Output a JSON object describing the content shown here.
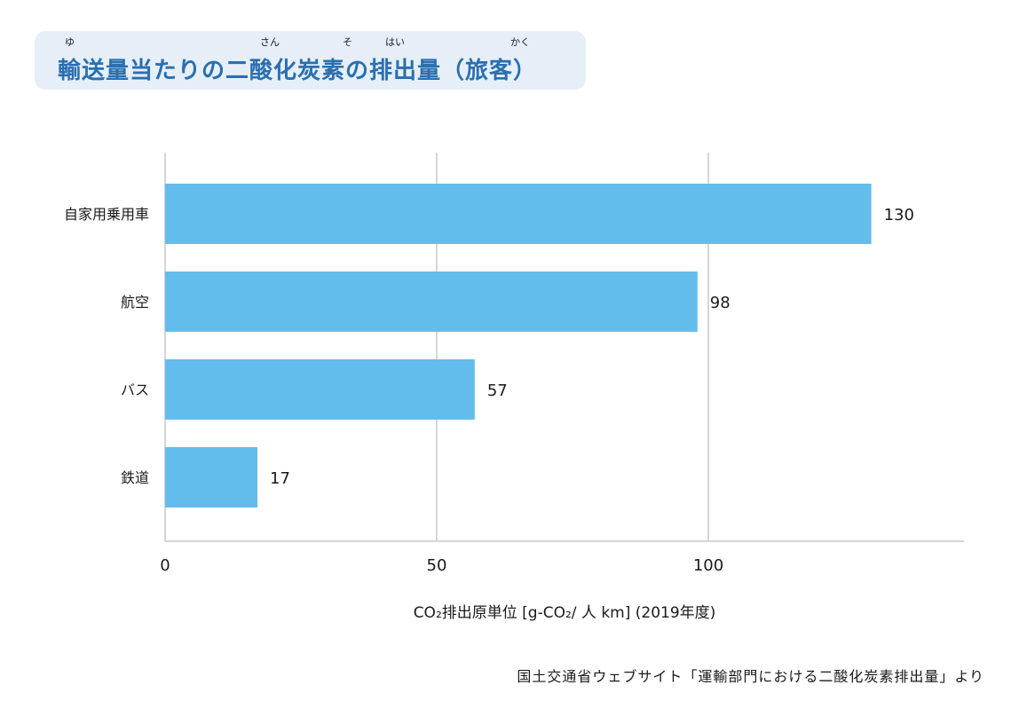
{
  "title": "輸送量当たりの二酸化炭素の排出量（旅客）",
  "title_ruby": [
    {
      "text": "ゆ"
    },
    {
      "text": "さん"
    },
    {
      "text": "そ"
    },
    {
      "text": "はい"
    },
    {
      "text": "かく"
    }
  ],
  "source": "国土交通省ウェブサイト「運輸部門における二酸化炭素排出量」より",
  "colors": {
    "bar": "#63bdec",
    "title": "#2a6fb0",
    "grid": "#c8c8c8",
    "title_bg": "#e6eff8"
  },
  "chart_data": {
    "type": "bar",
    "orientation": "horizontal",
    "categories": [
      "自家用乗用車",
      "航空",
      "バス",
      "鉄道"
    ],
    "values": [
      130,
      98,
      57,
      17
    ],
    "data_labels": [
      "130",
      "98",
      "57",
      "17"
    ],
    "xlabel": "CO₂排出原単位 [g-CO₂/ 人 km] (2019年度)",
    "xlim": [
      0,
      146
    ],
    "xticks": [
      0,
      50,
      100
    ],
    "xtick_labels": [
      "0",
      "50",
      "100"
    ],
    "grid": "vertical",
    "legend": "none"
  }
}
